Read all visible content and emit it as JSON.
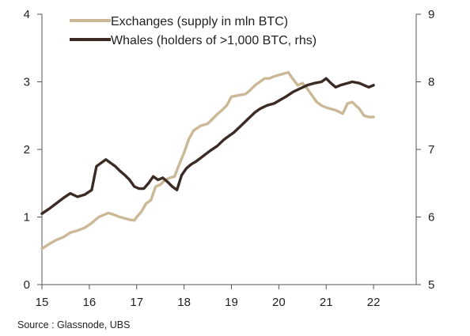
{
  "chart_data": {
    "type": "line",
    "title": "",
    "source": "Source : Glassnode, UBS",
    "x_ticks": [
      "15",
      "16",
      "17",
      "18",
      "19",
      "20",
      "21",
      "22"
    ],
    "x_range": [
      15,
      22.9
    ],
    "y_left_range": [
      0,
      4
    ],
    "y_left_ticks": [
      "0",
      "1",
      "2",
      "3",
      "4"
    ],
    "y_right_range": [
      5,
      9
    ],
    "y_right_ticks": [
      "5",
      "6",
      "7",
      "8",
      "9"
    ],
    "grid": false,
    "legend_position": "top-left",
    "series": [
      {
        "name": "Exchanges (supply in mln BTC)",
        "axis": "left",
        "color": "#cbb896",
        "x": [
          15.0,
          15.15,
          15.3,
          15.45,
          15.6,
          15.75,
          15.9,
          16.05,
          16.2,
          16.3,
          16.4,
          16.5,
          16.6,
          16.7,
          16.85,
          16.95,
          17.0,
          17.1,
          17.2,
          17.3,
          17.4,
          17.5,
          17.6,
          17.7,
          17.8,
          17.9,
          18.0,
          18.1,
          18.2,
          18.35,
          18.5,
          18.6,
          18.7,
          18.8,
          18.9,
          19.0,
          19.15,
          19.3,
          19.4,
          19.5,
          19.6,
          19.7,
          19.8,
          19.9,
          20.0,
          20.1,
          20.2,
          20.3,
          20.4,
          20.5,
          20.6,
          20.7,
          20.8,
          20.9,
          21.0,
          21.1,
          21.2,
          21.35,
          21.45,
          21.55,
          21.7,
          21.8,
          21.9,
          22.0
        ],
        "y": [
          0.53,
          0.6,
          0.66,
          0.7,
          0.77,
          0.8,
          0.84,
          0.91,
          1.0,
          1.03,
          1.06,
          1.04,
          1.01,
          0.99,
          0.96,
          0.95,
          1.0,
          1.08,
          1.2,
          1.25,
          1.45,
          1.48,
          1.55,
          1.58,
          1.6,
          1.78,
          1.95,
          2.15,
          2.28,
          2.35,
          2.38,
          2.45,
          2.52,
          2.58,
          2.65,
          2.78,
          2.8,
          2.82,
          2.88,
          2.95,
          3.0,
          3.05,
          3.05,
          3.08,
          3.1,
          3.12,
          3.14,
          3.04,
          2.95,
          2.98,
          2.9,
          2.8,
          2.7,
          2.65,
          2.62,
          2.6,
          2.58,
          2.53,
          2.68,
          2.7,
          2.6,
          2.5,
          2.48,
          2.48
        ]
      },
      {
        "name": "Whales (holders of >1,000 BTC, rhs)",
        "axis": "right",
        "color": "#3b2b25",
        "x": [
          15.0,
          15.15,
          15.3,
          15.45,
          15.6,
          15.75,
          15.9,
          16.05,
          16.15,
          16.25,
          16.35,
          16.45,
          16.55,
          16.65,
          16.75,
          16.85,
          16.95,
          17.05,
          17.15,
          17.25,
          17.35,
          17.45,
          17.55,
          17.65,
          17.75,
          17.85,
          17.95,
          18.05,
          18.15,
          18.25,
          18.4,
          18.55,
          18.7,
          18.85,
          18.95,
          19.05,
          19.2,
          19.35,
          19.5,
          19.6,
          19.75,
          19.9,
          20.0,
          20.15,
          20.3,
          20.45,
          20.6,
          20.75,
          20.9,
          21.0,
          21.1,
          21.2,
          21.3,
          21.45,
          21.55,
          21.7,
          21.8,
          21.9,
          22.0
        ],
        "y": [
          6.05,
          6.12,
          6.2,
          6.28,
          6.35,
          6.3,
          6.33,
          6.4,
          6.75,
          6.8,
          6.85,
          6.8,
          6.75,
          6.68,
          6.62,
          6.55,
          6.45,
          6.42,
          6.42,
          6.5,
          6.6,
          6.55,
          6.58,
          6.52,
          6.45,
          6.4,
          6.62,
          6.72,
          6.78,
          6.82,
          6.9,
          6.98,
          7.05,
          7.15,
          7.2,
          7.25,
          7.35,
          7.45,
          7.55,
          7.6,
          7.65,
          7.68,
          7.72,
          7.78,
          7.85,
          7.9,
          7.95,
          7.98,
          8.0,
          8.05,
          7.98,
          7.92,
          7.95,
          7.98,
          8.0,
          7.98,
          7.95,
          7.92,
          7.95
        ]
      }
    ]
  }
}
